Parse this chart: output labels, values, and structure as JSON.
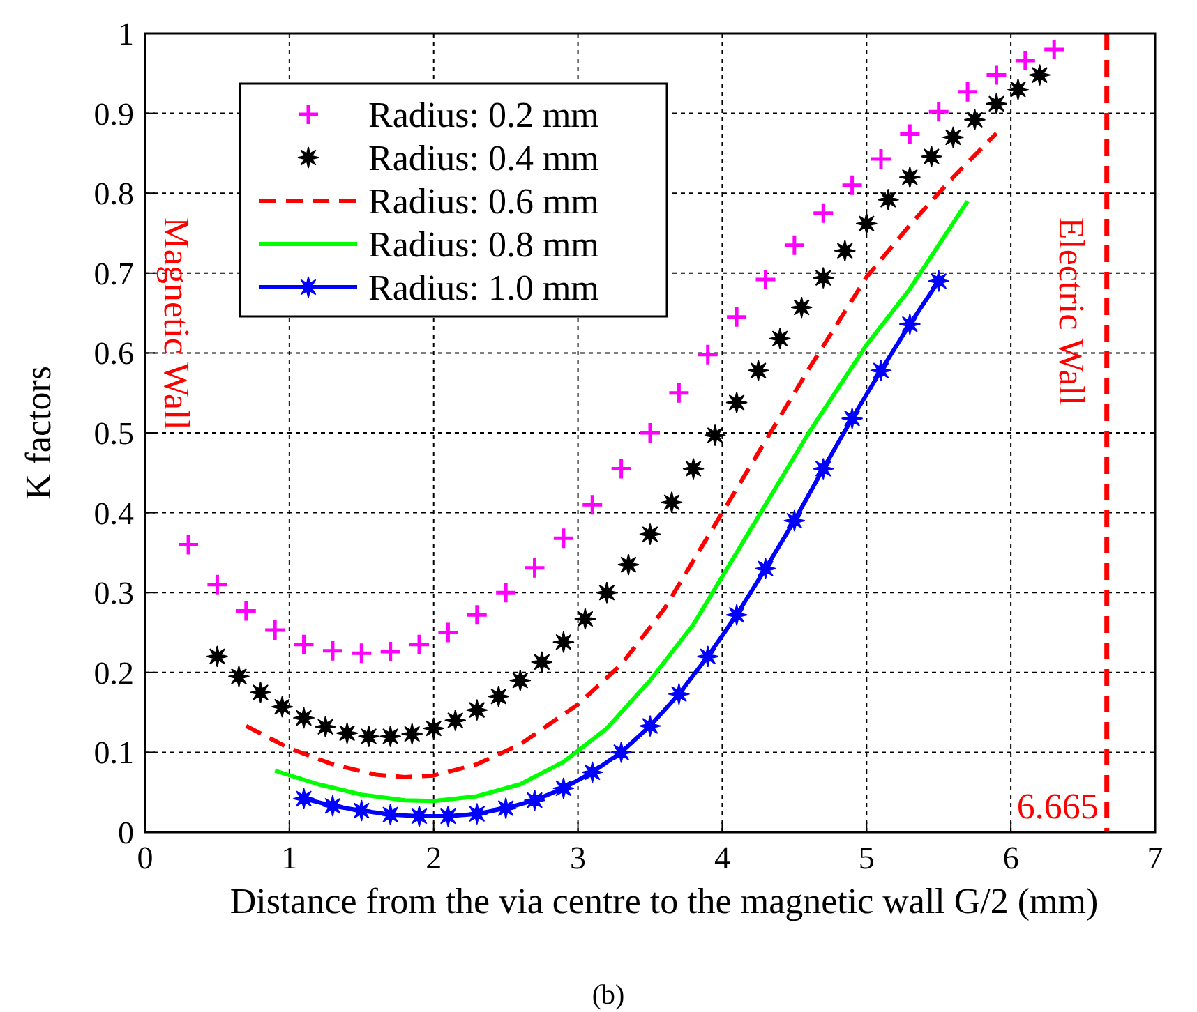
{
  "chart_data": {
    "type": "scatter",
    "xlabel": "Distance from the via centre to the magnetic wall G/2 (mm)",
    "ylabel": "K factors",
    "xlim": [
      0,
      7
    ],
    "xticks": [
      0,
      1,
      2,
      3,
      4,
      5,
      6,
      7
    ],
    "ylim": [
      0,
      1
    ],
    "yticks": [
      0,
      0.1,
      0.2,
      0.3,
      0.4,
      0.5,
      0.6,
      0.7,
      0.8,
      0.9,
      1
    ],
    "grid": true,
    "legend": "top left",
    "series": [
      {
        "name": "Radius: 0.2 mm",
        "marker": "cross",
        "color": "#ff00ff",
        "x": [
          0.3,
          0.5,
          0.7,
          0.9,
          1.1,
          1.3,
          1.5,
          1.7,
          1.9,
          2.1,
          2.3,
          2.5,
          2.7,
          2.9,
          3.1,
          3.3,
          3.5,
          3.7,
          3.9,
          4.1,
          4.3,
          4.5,
          4.7,
          4.9,
          5.1,
          5.3,
          5.5,
          5.7,
          5.9,
          6.1,
          6.3
        ],
        "values": [
          0.36,
          0.31,
          0.277,
          0.253,
          0.235,
          0.227,
          0.224,
          0.226,
          0.235,
          0.25,
          0.272,
          0.3,
          0.331,
          0.368,
          0.41,
          0.455,
          0.5,
          0.55,
          0.598,
          0.645,
          0.692,
          0.735,
          0.775,
          0.81,
          0.843,
          0.874,
          0.902,
          0.927,
          0.948,
          0.966,
          0.98
        ]
      },
      {
        "name": "Radius: 0.4 mm",
        "marker": "star",
        "color": "#000000",
        "x": [
          0.5,
          0.65,
          0.8,
          0.95,
          1.1,
          1.25,
          1.4,
          1.55,
          1.7,
          1.85,
          2.0,
          2.15,
          2.3,
          2.45,
          2.6,
          2.75,
          2.9,
          3.05,
          3.2,
          3.35,
          3.5,
          3.65,
          3.8,
          3.95,
          4.1,
          4.25,
          4.4,
          4.55,
          4.7,
          4.85,
          5.0,
          5.15,
          5.3,
          5.45,
          5.6,
          5.75,
          5.9,
          6.05,
          6.2
        ],
        "values": [
          0.22,
          0.195,
          0.175,
          0.157,
          0.143,
          0.132,
          0.124,
          0.12,
          0.12,
          0.123,
          0.13,
          0.14,
          0.153,
          0.17,
          0.19,
          0.213,
          0.238,
          0.267,
          0.3,
          0.335,
          0.373,
          0.413,
          0.455,
          0.497,
          0.538,
          0.578,
          0.618,
          0.657,
          0.694,
          0.728,
          0.762,
          0.792,
          0.82,
          0.846,
          0.87,
          0.892,
          0.912,
          0.93,
          0.948
        ]
      },
      {
        "name": "Radius: 0.6 mm",
        "type": "line",
        "line_style": "dashed",
        "marker": "none",
        "color": "#ff0000",
        "x": [
          0.7,
          1.0,
          1.3,
          1.6,
          1.8,
          2.0,
          2.3,
          2.6,
          3.0,
          3.3,
          3.6,
          4.0,
          4.3,
          4.6,
          5.0,
          5.3,
          5.6,
          5.9
        ],
        "values": [
          0.133,
          0.105,
          0.085,
          0.072,
          0.069,
          0.071,
          0.085,
          0.11,
          0.16,
          0.21,
          0.28,
          0.4,
          0.49,
          0.58,
          0.695,
          0.76,
          0.82,
          0.875
        ]
      },
      {
        "name": "Radius: 0.8 mm",
        "type": "line",
        "line_style": "solid",
        "marker": "none",
        "color": "#00ff00",
        "x": [
          0.9,
          1.2,
          1.5,
          1.8,
          2.0,
          2.3,
          2.6,
          2.9,
          3.2,
          3.5,
          3.8,
          4.0,
          4.3,
          4.6,
          5.0,
          5.3,
          5.7
        ],
        "values": [
          0.077,
          0.06,
          0.047,
          0.04,
          0.039,
          0.045,
          0.06,
          0.088,
          0.13,
          0.19,
          0.26,
          0.32,
          0.41,
          0.5,
          0.61,
          0.68,
          0.79
        ]
      },
      {
        "name": "Radius: 1.0 mm",
        "type": "line",
        "line_style": "solid",
        "marker": "star",
        "color": "#0000ff",
        "x": [
          1.1,
          1.3,
          1.5,
          1.7,
          1.9,
          2.1,
          2.3,
          2.5,
          2.7,
          2.9,
          3.1,
          3.3,
          3.5,
          3.7,
          3.9,
          4.1,
          4.3,
          4.5,
          4.7,
          4.9,
          5.1,
          5.3,
          5.5
        ],
        "values": [
          0.042,
          0.033,
          0.027,
          0.022,
          0.02,
          0.02,
          0.023,
          0.03,
          0.04,
          0.055,
          0.075,
          0.1,
          0.133,
          0.173,
          0.22,
          0.272,
          0.33,
          0.39,
          0.455,
          0.518,
          0.578,
          0.636,
          0.69
        ]
      }
    ],
    "ref_lines": [
      {
        "axis": "x",
        "value": 6.665,
        "label": "6.665",
        "color": "#ff0000",
        "line_style": "dashed"
      }
    ],
    "annotations": [
      "Magnetic Wall",
      "Electric Wall",
      "(b)"
    ]
  }
}
